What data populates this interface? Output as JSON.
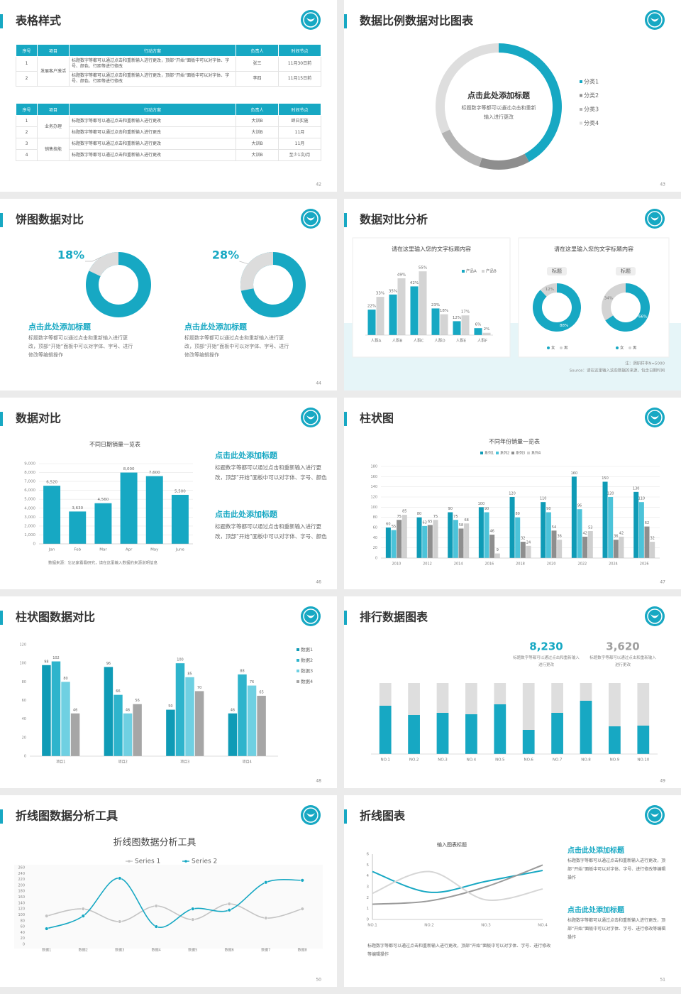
{
  "slides": [
    {
      "title": "表格样式",
      "page": 42,
      "tables": [
        {
          "header": [
            "序号",
            "项目",
            "行动方案",
            "负责人",
            "时间节点"
          ],
          "rows": [
            [
              "1",
              "发展客户激活",
              "标题数字等都可以通过点击和重新输入进行更改，顶部“开始”面板中可以对字体、字号、颜色、行距等进行修改",
              "张三",
              "11月30日前"
            ],
            [
              "2",
              null,
              "标题数字等都可以通过点击和重新输入进行更改，顶部“开始”面板中可以对字体、字号、颜色、行距等进行修改",
              "李四",
              "11月15日前"
            ]
          ]
        },
        {
          "header": [
            "序号",
            "项目",
            "行动方案",
            "负责人",
            "时间节点"
          ],
          "rows": [
            [
              "1",
              "业务办理",
              "标题数字等都可以通过点击和重新输入进行更改",
              "大训B",
              "即日实施"
            ],
            [
              "2",
              null,
              "标题数字等都可以通过点击和重新输入进行更改",
              "大训B",
              "11月"
            ],
            [
              "3",
              "销售技能",
              "标题数字等都可以通过点击和重新输入进行更改",
              "大训B",
              "11月"
            ],
            [
              "4",
              null,
              "标题数字等都可以通过点击和重新输入进行更改",
              "大训B",
              "至少1次/月"
            ]
          ]
        }
      ]
    },
    {
      "title": "数据比例数据对比图表",
      "page": 43,
      "chart": {
        "type": "donut",
        "title": "点击此处添加标题",
        "subtitle": "标题数字等都可以通过点击和重新输入进行更改",
        "categories": [
          "分类1",
          "分类2",
          "分类3",
          "分类4"
        ],
        "values": [
          42,
          13,
          13,
          32
        ],
        "colors": [
          "#17a8c3",
          "#8e8e8e",
          "#b4b4b4",
          "#dedede"
        ]
      }
    },
    {
      "title": "饼图数据对比",
      "page": 44,
      "charts": [
        {
          "type": "donut",
          "values": [
            18
          ],
          "value_labels": [
            "18%"
          ],
          "colors": [
            "#dcdcdc"
          ],
          "track_color": "#17a8c3",
          "heading": "点击此处添加标题",
          "text": "标题数字等都可以通过点击和重新输入进行更改，顶部“开始”面板中可以对字体、字号、进行修改等编辑操作"
        },
        {
          "type": "donut",
          "values": [
            28
          ],
          "value_labels": [
            "28%"
          ],
          "colors": [
            "#dcdcdc"
          ],
          "track_color": "#17a8c3",
          "heading": "点击此处添加标题",
          "text": "标题数字等都可以通过点击和重新输入进行更改，顶部“开始”面板中可以对字体、字号、进行修改等编辑操作"
        }
      ]
    },
    {
      "title": "数据对比分析",
      "page": 45,
      "left": {
        "title": "请在这里输入您的文字标题内容",
        "chart": {
          "type": "bar",
          "categories": [
            "人群A",
            "人群B",
            "人群C",
            "人群D",
            "人群E",
            "人群F"
          ],
          "ylim": [
            0,
            60
          ],
          "series": [
            {
              "name": "产品A",
              "color": "#17a8c3",
              "values": [
                22,
                35,
                42,
                23,
                12,
                6
              ],
              "value_labels": [
                "22%",
                "35%",
                "42%",
                "23%",
                "12%",
                "6%"
              ]
            },
            {
              "name": "产品B",
              "color": "#d4d4d4",
              "values": [
                33,
                49,
                55,
                18,
                17,
                2
              ],
              "value_labels": [
                "33%",
                "49%",
                "55%",
                "18%",
                "17%",
                "2%"
              ]
            }
          ]
        }
      },
      "right": {
        "title": "请在这里输入您的文字标题内容",
        "donuts": [
          {
            "type": "donut",
            "title": "标题",
            "categories": [
              "女",
              "男"
            ],
            "values": [
              88,
              12
            ],
            "value_labels": [
              "88%",
              "12%"
            ],
            "colors": [
              "#17a8c3",
              "#d4d4d4"
            ]
          },
          {
            "type": "donut",
            "title": "标题",
            "categories": [
              "女",
              "男"
            ],
            "values": [
              66,
              34
            ],
            "value_labels": [
              "66%",
              "34%"
            ],
            "colors": [
              "#17a8c3",
              "#d4d4d4"
            ]
          }
        ]
      },
      "notes": [
        "注：调研样本N=5000",
        "Source：请在这里输入这些数据的来源，包含日期时间"
      ]
    },
    {
      "title": "数据对比",
      "page": 46,
      "chart": {
        "type": "bar",
        "title": "不同日期销量一览表",
        "categories": [
          "Jan",
          "Feb",
          "Mar",
          "Apr",
          "May",
          "June"
        ],
        "values": [
          6520,
          3630,
          4560,
          8000,
          7600,
          5500
        ],
        "value_labels": [
          "6,520",
          "3,630",
          "4,560",
          "8,000",
          "7,600",
          "5,500"
        ],
        "color": "#17a8c3",
        "ylim": [
          0,
          9000
        ],
        "yticks": [
          0,
          {
            "value": 1000,
            "label": "1,000"
          },
          {
            "value": 2000,
            "label": "2,000"
          },
          {
            "value": 3000,
            "label": "3,000"
          },
          {
            "value": 4000,
            "label": "4,000"
          },
          {
            "value": 5000,
            "label": "5,000"
          },
          {
            "value": 6000,
            "label": "6,000"
          },
          {
            "value": 7000,
            "label": "7,000"
          },
          {
            "value": 8000,
            "label": "8,000"
          },
          {
            "value": 9000,
            "label": "9,000"
          }
        ],
        "grid": true
      },
      "note": "数据来源：忘记家看看研究，请在这里输入数据的来源说明信息",
      "blocks": [
        {
          "heading": "点击此处添加标题",
          "text": "标题数字等都可以通过点击和重新输入进行更改，顶部“开始”面板中可以对字体、字号、颜色"
        },
        {
          "heading": "点击此处添加标题",
          "text": "标题数字等都可以通过点击和重新输入进行更改，顶部“开始”面板中可以对字体、字号、颜色"
        }
      ]
    },
    {
      "title": "柱状图",
      "page": 47,
      "chart": {
        "type": "bar",
        "title": "不同年份销量一览表",
        "categories": [
          "2010",
          "2012",
          "2014",
          "2016",
          "2018",
          "2020",
          "2022",
          "2024",
          "2026"
        ],
        "ylim": [
          0,
          180
        ],
        "yticks": [
          0,
          20,
          40,
          60,
          80,
          100,
          120,
          140,
          160,
          180
        ],
        "grid": true,
        "series": [
          {
            "name": "系列1",
            "color": "#0f9bb6",
            "values": [
              60,
              80,
              90,
              100,
              120,
              110,
              160,
              150,
              130
            ]
          },
          {
            "name": "系列2",
            "color": "#4cc3d9",
            "values": [
              55,
              63,
              75,
              90,
              80,
              90,
              96,
              120,
              110
            ]
          },
          {
            "name": "系列3",
            "color": "#8e8e8e",
            "values": [
              75,
              65,
              58,
              46,
              32,
              54,
              42,
              36,
              62
            ]
          },
          {
            "name": "系列4",
            "color": "#d0d0d0",
            "values": [
              85,
              75,
              68,
              9,
              24,
              36,
              53,
              42,
              32
            ]
          }
        ]
      }
    },
    {
      "title": "柱状图数据对比",
      "page": 48,
      "chart": {
        "type": "bar",
        "categories": [
          "项目1",
          "项目2",
          "项目3",
          "项目4"
        ],
        "ylim": [
          0,
          120
        ],
        "yticks": [
          0,
          20,
          40,
          60,
          80,
          100,
          120
        ],
        "series": [
          {
            "name": "数据1",
            "color": "#0f9bb6",
            "values": [
              98,
              96,
              50,
              46
            ]
          },
          {
            "name": "数据2",
            "color": "#2eb4cc",
            "values": [
              102,
              66,
              100,
              88
            ]
          },
          {
            "name": "数据3",
            "color": "#6fd0e2",
            "values": [
              80,
              46,
              85,
              76
            ]
          },
          {
            "name": "数据4",
            "color": "#a6a6a6",
            "values": [
              46,
              56,
              70,
              65
            ]
          }
        ]
      }
    },
    {
      "title": "排行数据图表",
      "page": 49,
      "stats": [
        {
          "number": "8,230",
          "text": "标题数字等都可以通过点击和重新输入进行更改",
          "color": "#17a8c3"
        },
        {
          "number": "3,620",
          "text": "标题数字等都可以通过点击和重新输入进行更改",
          "color": "#a0a0a0"
        }
      ],
      "chart": {
        "type": "bar",
        "categories": [
          "NO.1",
          "NO.2",
          "NO.3",
          "NO.4",
          "NO.5",
          "NO.6",
          "NO.7",
          "NO.8",
          "NO.9",
          "NO.10"
        ],
        "values": [
          68,
          55,
          58,
          56,
          70,
          34,
          58,
          75,
          39,
          40
        ],
        "ylim": [
          0,
          100
        ],
        "color": "#17a8c3",
        "track_color": "#dedede"
      }
    },
    {
      "title": "折线图数据分析工具",
      "page": 50,
      "chart": {
        "type": "line",
        "title": "折线图数据分析工具",
        "categories": [
          "数据1",
          "数据2",
          "数据3",
          "数据4",
          "数据5",
          "数据6",
          "数据7",
          "数据8"
        ],
        "ylim": [
          0,
          260
        ],
        "yticks": [
          0,
          20,
          40,
          60,
          80,
          100,
          120,
          140,
          160,
          180,
          200,
          220,
          240,
          260
        ],
        "series": [
          {
            "name": "Series 1",
            "color": "#c4c4c4",
            "values": [
              96,
              120,
              77,
              130,
              84,
              137,
              89,
              120
            ]
          },
          {
            "name": "Series 2",
            "color": "#17a8c3",
            "values": [
              53,
              96,
              224,
              60,
              120,
              116,
              210,
              217
            ]
          }
        ]
      }
    },
    {
      "title": "折线图表",
      "page": 51,
      "chart": {
        "type": "line",
        "title": "输入图表标题",
        "categories": [
          "NO.1",
          "NO.2",
          "NO.3",
          "NO.4"
        ],
        "ylim": [
          0,
          6
        ],
        "yticks": [
          0,
          1,
          2,
          3,
          4,
          5,
          6
        ],
        "series": [
          {
            "color": "#17a8c3",
            "values": [
              4.4,
              2.5,
              3.5,
              4.5
            ]
          },
          {
            "color": "#9a9a9a",
            "values": [
              1.4,
              1.7,
              3.0,
              5.0
            ]
          },
          {
            "color": "#d6d6d6",
            "values": [
              2.4,
              4.4,
              1.8,
              2.8
            ]
          }
        ]
      },
      "blocks": [
        {
          "heading": "点击此处添加标题",
          "text": "标题数字等都可以通过点击和重新输入进行更改，顶部“开始”面板中可以对字体、字号、进行修改等编辑操作"
        },
        {
          "heading": "点击此处添加标题",
          "text": "标题数字等都可以通过点击和重新输入进行更改，顶部“开始”面板中可以对字体、字号、进行修改等编辑操作"
        }
      ],
      "text": "标题数字等都可以通过点击和重新输入进行更改，顶部“开始”面板中可以对字体、字号、进行修改等编辑操作"
    }
  ]
}
